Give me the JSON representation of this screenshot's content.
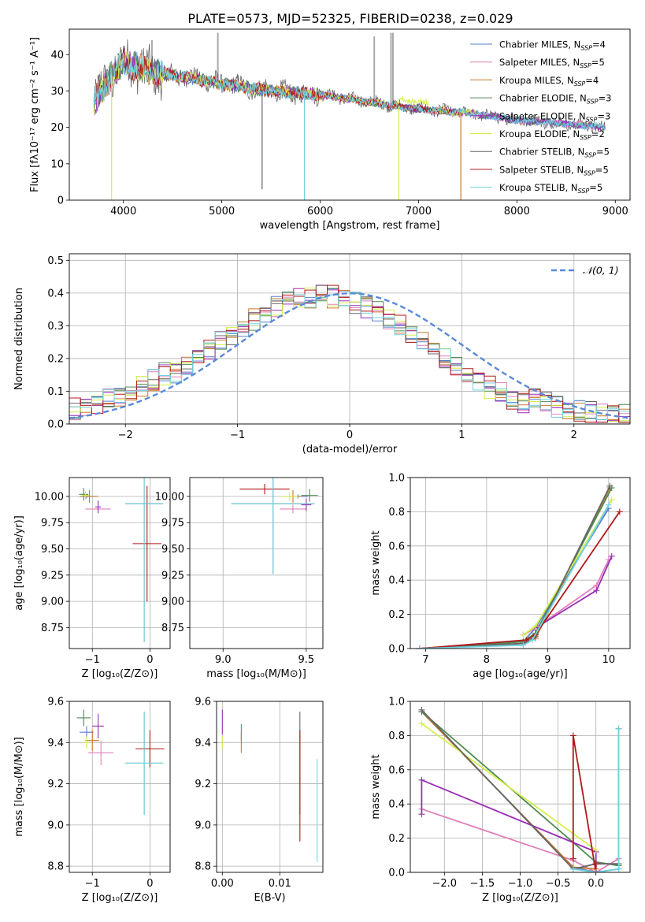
{
  "title": "PLATE=0573, MJD=52325, FIBERID=0238, z=0.029",
  "colors": {
    "chabrier_miles": "#5a7fd0",
    "salpeter_miles": "#e07fb8",
    "kroupa_miles": "#c87828",
    "chabrier_elodie": "#4f8a50",
    "salpeter_elodie": "#9a2eb5",
    "kroupa_elodie": "#d4ee4a",
    "chabrier_stelib": "#666666",
    "salpeter_stelib": "#b01818",
    "kroupa_stelib": "#70d4e0",
    "normal": "#5a8ad8",
    "grid": "#b0b0b0"
  },
  "chart_data": [
    {
      "id": "spectrum",
      "type": "line",
      "xlabel": "wavelength [Angstrom, rest frame]",
      "ylabel": "Flux [fλ10⁻¹⁷ erg cm⁻² s⁻¹ A⁻¹]",
      "xlim": [
        3450,
        9150
      ],
      "ylim": [
        0,
        47
      ],
      "xticks": [
        4000,
        5000,
        6000,
        7000,
        8000,
        9000
      ],
      "yticks": [
        0,
        10,
        20,
        30,
        40
      ],
      "grid": false,
      "legend_position": "top-right",
      "legend": [
        {
          "model": "Chabrier MILES",
          "nssp": "4"
        },
        {
          "model": "Salpeter MILES",
          "nssp": "5"
        },
        {
          "model": "Kroupa MILES",
          "nssp": "4"
        },
        {
          "model": "Chabrier ELODIE",
          "nssp": "3"
        },
        {
          "model": "Salpeter ELODIE",
          "nssp": "3"
        },
        {
          "model": "Kroupa ELODIE",
          "nssp": "2"
        },
        {
          "model": "Chabrier STELIB",
          "nssp": "5"
        },
        {
          "model": "Salpeter STELIB",
          "nssp": "5"
        },
        {
          "model": "Kroupa STELIB",
          "nssp": "5"
        }
      ],
      "continuum": [
        [
          3700,
          27
        ],
        [
          3800,
          31
        ],
        [
          3900,
          35
        ],
        [
          4000,
          38
        ],
        [
          4100,
          37
        ],
        [
          4300,
          35
        ],
        [
          4600,
          34
        ],
        [
          5000,
          32
        ],
        [
          5500,
          30
        ],
        [
          6000,
          29
        ],
        [
          6500,
          27
        ],
        [
          7000,
          25
        ],
        [
          7500,
          24
        ],
        [
          8000,
          22
        ],
        [
          8500,
          21
        ],
        [
          8900,
          20
        ]
      ],
      "spikes_down": [
        [
          3880,
          0
        ],
        [
          5410,
          3
        ],
        [
          5840,
          0
        ],
        [
          6800,
          0
        ],
        [
          7430,
          0
        ]
      ],
      "spikes_up": [
        [
          4290,
          44
        ],
        [
          4960,
          46
        ],
        [
          6550,
          45
        ],
        [
          6720,
          46
        ],
        [
          6740,
          46
        ]
      ]
    },
    {
      "id": "residuals",
      "type": "line",
      "xlabel": "(data-model)/error",
      "ylabel": "Normed distribution",
      "xlim": [
        -2.5,
        2.5
      ],
      "ylim": [
        0,
        0.52
      ],
      "xticks": [
        -2,
        -1,
        0,
        1,
        2
      ],
      "yticks": [
        0.0,
        0.1,
        0.2,
        0.3,
        0.4,
        0.5
      ],
      "grid": true,
      "legend_position": "top-right",
      "normal_label": "𝒩(0, 1)",
      "normal": {
        "mean": 0,
        "sigma": 1
      }
    },
    {
      "id": "age_vs_z",
      "type": "scatter",
      "xlabel": "Z [log₁₀(Z/Z⊙)]",
      "ylabel": "age  [log₁₀(age/yr)]",
      "xlim": [
        -1.4,
        0.35
      ],
      "ylim": [
        8.55,
        10.18
      ],
      "xticks": [
        -1,
        0
      ],
      "yticks": [
        8.75,
        9.0,
        9.25,
        9.5,
        9.75,
        10.0
      ],
      "grid": true,
      "points": [
        {
          "model": "chabrier_miles",
          "x": -1.1,
          "y": 10.0,
          "xerr": 0.12,
          "yerr": 0.02
        },
        {
          "model": "salpeter_miles",
          "x": -0.9,
          "y": 9.88,
          "xerr": 0.22,
          "yerr": 0.04
        },
        {
          "model": "kroupa_miles",
          "x": -1.05,
          "y": 10.0,
          "xerr": 0.15,
          "yerr": 0.06
        },
        {
          "model": "chabrier_elodie",
          "x": -1.15,
          "y": 10.02,
          "xerr": 0.08,
          "yerr": 0.06
        },
        {
          "model": "salpeter_elodie",
          "x": -0.9,
          "y": 9.9,
          "xerr": 0.05,
          "yerr": 0.06
        },
        {
          "model": "kroupa_elodie",
          "x": -1.12,
          "y": 10.01,
          "xerr": 0.06,
          "yerr": 0.04
        },
        {
          "model": "chabrier_stelib",
          "x": -0.1,
          "y": 9.93,
          "xerr": 0.33,
          "yerr": 1.32
        },
        {
          "model": "salpeter_stelib",
          "x": -0.05,
          "y": 9.55,
          "xerr": 0.25,
          "yerr": 0.55
        },
        {
          "model": "kroupa_stelib",
          "x": -0.1,
          "y": 9.93,
          "xerr": 0.33,
          "yerr": 1.32
        }
      ]
    },
    {
      "id": "age_vs_mass",
      "type": "scatter",
      "xlabel": "mass [log₁₀(M/M⊙)]",
      "ylabel": "",
      "xlim": [
        8.8,
        9.6
      ],
      "ylim": [
        8.55,
        10.18
      ],
      "xticks": [
        9.0,
        9.5
      ],
      "yticks": [
        8.75,
        9.0,
        9.25,
        9.5,
        9.75,
        10.0
      ],
      "grid": true,
      "points": [
        {
          "model": "chabrier_miles",
          "x": 9.45,
          "y": 10.0,
          "xerr": 0.06,
          "yerr": 0.02
        },
        {
          "model": "salpeter_miles",
          "x": 9.42,
          "y": 9.88,
          "xerr": 0.08,
          "yerr": 0.04
        },
        {
          "model": "kroupa_miles",
          "x": 9.42,
          "y": 10.0,
          "xerr": 0.05,
          "yerr": 0.06
        },
        {
          "model": "chabrier_elodie",
          "x": 9.52,
          "y": 10.01,
          "xerr": 0.05,
          "yerr": 0.06
        },
        {
          "model": "salpeter_elodie",
          "x": 9.5,
          "y": 9.92,
          "xerr": 0.03,
          "yerr": 0.06
        },
        {
          "model": "kroupa_elodie",
          "x": 9.4,
          "y": 10.0,
          "xerr": 0.05,
          "yerr": 0.04
        },
        {
          "model": "chabrier_stelib",
          "x": 9.3,
          "y": 9.93,
          "xerr": 0.25,
          "yerr": 0.67
        },
        {
          "model": "salpeter_stelib",
          "x": 9.25,
          "y": 10.07,
          "xerr": 0.15,
          "yerr": 0.05
        },
        {
          "model": "kroupa_stelib",
          "x": 9.3,
          "y": 9.93,
          "xerr": 0.25,
          "yerr": 0.67
        }
      ]
    },
    {
      "id": "weight_vs_age",
      "type": "line",
      "xlabel": "age  [log₁₀(age/yr)]",
      "ylabel": "mass weight",
      "xlim": [
        6.75,
        10.35
      ],
      "ylim": [
        0,
        1.0
      ],
      "xticks": [
        7,
        8,
        9,
        10
      ],
      "yticks": [
        0.0,
        0.2,
        0.4,
        0.6,
        0.8,
        1.0
      ],
      "grid": true,
      "series": [
        {
          "model": "chabrier_miles",
          "x": [
            6.9,
            8.6,
            8.8,
            10.0
          ],
          "y": [
            0.0,
            0.04,
            0.12,
            0.82
          ]
        },
        {
          "model": "salpeter_miles",
          "x": [
            8.6,
            8.8,
            9.8,
            10.0
          ],
          "y": [
            0.08,
            0.12,
            0.37,
            0.52
          ]
        },
        {
          "model": "kroupa_miles",
          "x": [
            6.9,
            8.6,
            8.8,
            10.02
          ],
          "y": [
            0.0,
            0.03,
            0.06,
            0.94
          ]
        },
        {
          "model": "chabrier_elodie",
          "x": [
            6.9,
            8.6,
            8.8,
            10.05
          ],
          "y": [
            0.0,
            0.04,
            0.09,
            0.94
          ]
        },
        {
          "model": "salpeter_elodie",
          "x": [
            8.8,
            9.8,
            10.05
          ],
          "y": [
            0.12,
            0.34,
            0.54
          ]
        },
        {
          "model": "kroupa_elodie",
          "x": [
            8.6,
            8.8,
            10.05
          ],
          "y": [
            0.08,
            0.13,
            0.87
          ]
        },
        {
          "model": "chabrier_stelib",
          "x": [
            6.9,
            8.6,
            8.8,
            10.02
          ],
          "y": [
            0.0,
            0.03,
            0.07,
            0.95
          ]
        },
        {
          "model": "salpeter_stelib",
          "x": [
            6.9,
            8.65,
            8.8,
            10.18
          ],
          "y": [
            0.0,
            0.05,
            0.08,
            0.8
          ]
        },
        {
          "model": "kroupa_stelib",
          "x": [
            6.9,
            8.6,
            8.75,
            10.0
          ],
          "y": [
            0.0,
            0.02,
            0.05,
            0.84
          ]
        }
      ]
    },
    {
      "id": "mass_vs_z",
      "type": "scatter",
      "xlabel": "Z [log₁₀(Z/Z⊙)]",
      "ylabel": "mass [log₁₀(M/M⊙)]",
      "xlim": [
        -1.4,
        0.35
      ],
      "ylim": [
        8.77,
        9.6
      ],
      "xticks": [
        -1,
        0
      ],
      "yticks": [
        8.8,
        9.0,
        9.2,
        9.4,
        9.6
      ],
      "grid": true,
      "points": [
        {
          "model": "chabrier_miles",
          "x": -1.1,
          "y": 9.45,
          "xerr": 0.12,
          "yerr": 0.03
        },
        {
          "model": "salpeter_miles",
          "x": -0.85,
          "y": 9.35,
          "xerr": 0.22,
          "yerr": 0.06
        },
        {
          "model": "kroupa_miles",
          "x": -1.0,
          "y": 9.41,
          "xerr": 0.12,
          "yerr": 0.05
        },
        {
          "model": "chabrier_elodie",
          "x": -1.15,
          "y": 9.52,
          "xerr": 0.12,
          "yerr": 0.04
        },
        {
          "model": "salpeter_elodie",
          "x": -0.9,
          "y": 9.48,
          "xerr": 0.1,
          "yerr": 0.06
        },
        {
          "model": "kroupa_elodie",
          "x": -1.1,
          "y": 9.4,
          "xerr": 0.05,
          "yerr": 0.03
        },
        {
          "model": "chabrier_stelib",
          "x": -0.1,
          "y": 9.3,
          "xerr": 0.33,
          "yerr": 0.25
        },
        {
          "model": "salpeter_stelib",
          "x": 0.0,
          "y": 9.37,
          "xerr": 0.25,
          "yerr": 0.09
        },
        {
          "model": "kroupa_stelib",
          "x": -0.1,
          "y": 9.3,
          "xerr": 0.33,
          "yerr": 0.25
        }
      ]
    },
    {
      "id": "mass_vs_ebv",
      "type": "scatter",
      "xlabel": "E(B-V)",
      "ylabel": "",
      "xlim": [
        -0.001,
        0.0175
      ],
      "ylim": [
        8.77,
        9.6
      ],
      "xticks": [
        0.0,
        0.01
      ],
      "yticks": [
        8.8,
        9.0,
        9.2,
        9.4,
        9.6
      ],
      "grid": true,
      "points": [
        {
          "model": "salpeter_elodie",
          "x": 0.0,
          "y": 9.5,
          "yerr": 0.06
        },
        {
          "model": "kroupa_elodie",
          "x": 0.0,
          "y": 9.4,
          "yerr": 0.03
        },
        {
          "model": "chabrier_miles",
          "x": 0.0033,
          "y": 9.45,
          "yerr": 0.04
        },
        {
          "model": "kroupa_miles",
          "x": 0.0033,
          "y": 9.4,
          "yerr": 0.05
        },
        {
          "model": "chabrier_stelib",
          "x": 0.0135,
          "y": 9.3,
          "yerr": 0.25
        },
        {
          "model": "salpeter_stelib",
          "x": 0.0135,
          "y": 9.19,
          "yerr": 0.27
        },
        {
          "model": "kroupa_stelib",
          "x": 0.0165,
          "y": 9.07,
          "yerr": 0.25
        }
      ]
    },
    {
      "id": "weight_vs_z",
      "type": "line",
      "xlabel": "Z [log₁₀(Z/Z⊙)]",
      "ylabel": "mass weight",
      "xlim": [
        -2.45,
        0.45
      ],
      "ylim": [
        0,
        1.0
      ],
      "xticks": [
        -2.0,
        -1.5,
        -1.0,
        -0.5,
        0.0
      ],
      "yticks": [
        0.0,
        0.2,
        0.4,
        0.6,
        0.8,
        1.0
      ],
      "grid": true,
      "series": [
        {
          "model": "chabrier_miles",
          "x": [
            -2.3,
            -0.3,
            0.0,
            0.3
          ],
          "y": [
            0.94,
            0.03,
            0.0,
            0.02
          ]
        },
        {
          "model": "salpeter_miles",
          "x": [
            -2.3,
            -0.3,
            0.0,
            0.3
          ],
          "y": [
            0.37,
            0.07,
            0.0,
            0.08
          ]
        },
        {
          "model": "kroupa_miles",
          "x": [
            -2.3,
            -0.3,
            0.0
          ],
          "y": [
            0.94,
            0.03,
            0.02
          ]
        },
        {
          "model": "chabrier_elodie",
          "x": [
            -2.3,
            0.0,
            0.3
          ],
          "y": [
            0.94,
            0.06,
            0.04
          ]
        },
        {
          "model": "salpeter_elodie",
          "x": [
            -2.3,
            -2.3,
            0.0,
            0.0
          ],
          "y": [
            0.34,
            0.54,
            0.12,
            0.0
          ]
        },
        {
          "model": "kroupa_elodie",
          "x": [
            -2.3,
            0.0
          ],
          "y": [
            0.87,
            0.13
          ]
        },
        {
          "model": "chabrier_stelib",
          "x": [
            -2.3,
            -0.3,
            0.0,
            0.3,
            0.3
          ],
          "y": [
            0.95,
            0.02,
            0.05,
            0.05,
            0.84
          ]
        },
        {
          "model": "salpeter_stelib",
          "x": [
            -0.3,
            -0.3,
            0.0,
            0.0
          ],
          "y": [
            0.08,
            0.8,
            0.0,
            0.05
          ]
        },
        {
          "model": "kroupa_stelib",
          "x": [
            -0.3,
            0.0,
            0.3,
            0.3
          ],
          "y": [
            0.02,
            0.0,
            0.02,
            0.84
          ]
        }
      ]
    }
  ]
}
